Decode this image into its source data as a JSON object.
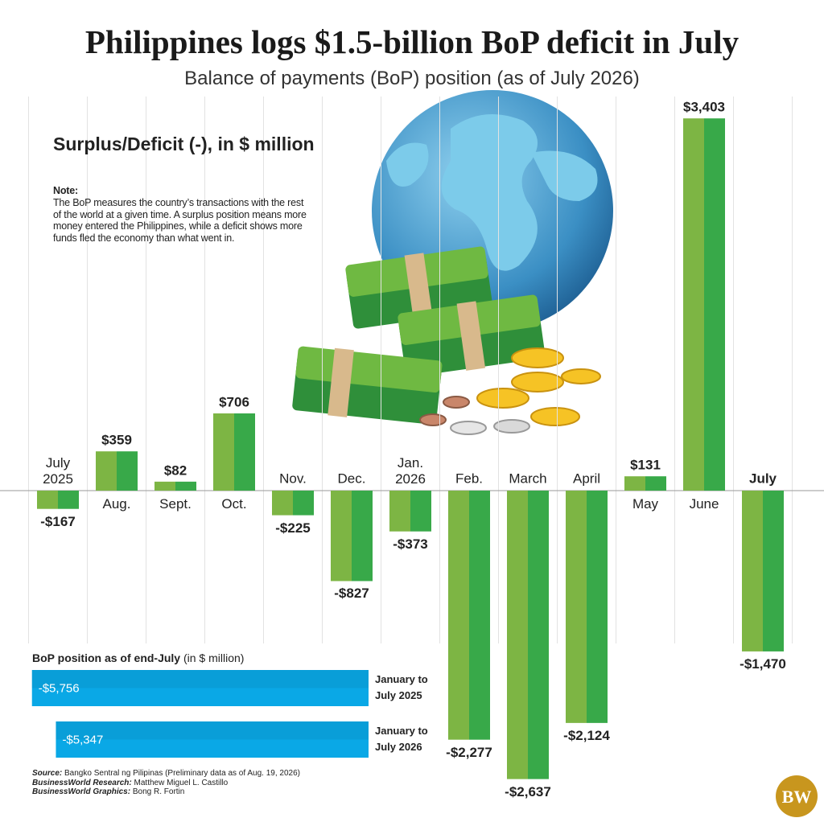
{
  "chart_data": [
    {
      "type": "bar",
      "title": "Philippines logs $1.5-billion BoP deficit in July",
      "subtitle": "Balance of payments (BoP) position (as of July 2026)",
      "y_label": "Surplus/Deficit (-), in $ million",
      "note": {
        "title": "Note:",
        "text": "The BoP measures the country’s transactions with the rest of the world at a given time. A surplus position means more money entered the Philippines, while a deficit shows more funds fled the economy than what went in."
      },
      "categories": [
        "July\n2025",
        "Aug.",
        "Sept.",
        "Oct.",
        "Nov.",
        "Dec.",
        "Jan.\n2026",
        "Feb.",
        "March",
        "April",
        "May",
        "June",
        "July"
      ],
      "values": [
        -167,
        359,
        82,
        706,
        -225,
        -827,
        -373,
        -2277,
        -2637,
        -2124,
        131,
        3403,
        -1470
      ],
      "value_labels": [
        "-$167",
        "$359",
        "$82",
        "$706",
        "-$225",
        "-$827",
        "-$373",
        "-$2,277",
        "-$2,637",
        "-$2,124",
        "$131",
        "$3,403",
        "-$1,470"
      ],
      "colors": [
        "#7db544",
        "#38a949"
      ],
      "ylim": [
        -3000,
        3500
      ]
    },
    {
      "type": "bar",
      "orientation": "horizontal",
      "title": "BoP position as of end-July",
      "subtitle": "(in $ million)",
      "categories": [
        "January to\nJuly 2025",
        "January to\nJuly 2026"
      ],
      "values": [
        -5756,
        -5347
      ],
      "value_labels": [
        "-$5,756",
        "-$5,347"
      ],
      "color": "#0aa8e6",
      "xlim": [
        -6000,
        0
      ]
    }
  ],
  "footer": [
    {
      "label": "Source:",
      "text": "Bangko Sentral ng Pilipinas (Preliminary data as of Aug. 19, 2026)"
    },
    {
      "label": "BusinessWorld Research:",
      "text": "Matthew Miguel L. Castillo"
    },
    {
      "label": "BusinessWorld Graphics:",
      "text": "Bong R. Fortin"
    }
  ],
  "logo": "BW"
}
